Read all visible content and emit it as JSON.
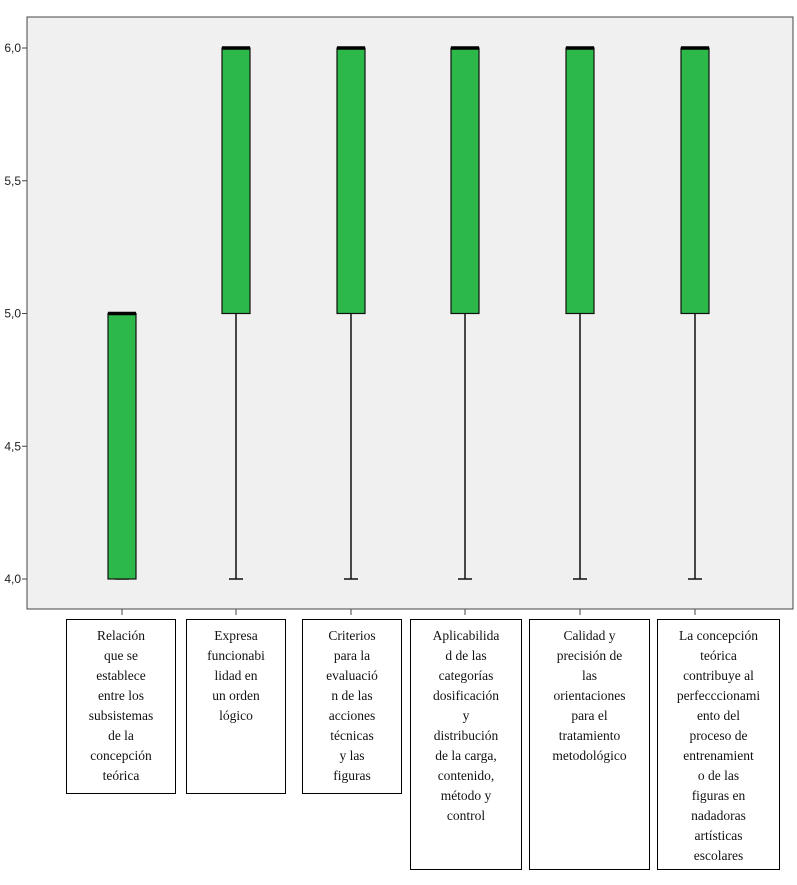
{
  "chart_data": {
    "type": "boxplot",
    "title": "",
    "xlabel": "",
    "ylabel": "",
    "ylim": [
      3.9,
      6.12
    ],
    "y_ticks": [
      4.0,
      4.5,
      5.0,
      5.5,
      6.0
    ],
    "y_tick_labels": [
      "4,0",
      "4,5",
      "5,0",
      "5,5",
      "6,0"
    ],
    "box_color": "#2db84a",
    "categories": [
      "Relación\nque se\nestablece\nentre los\nsubsistemas\nde la\nconcepción\nteórica",
      "Expresa\nfuncionabi\nlidad en\nun orden\nlógico",
      "Criterios\npara la\nevaluació\nn de las\nacciones\ntécnicas\ny las\nfiguras",
      "Aplicabilida\nd de las\ncategorías\ndosificación\ny\ndistribución\nde la carga,\ncontenido,\nmétodo y\ncontrol",
      "Calidad y\nprecisión de\nlas\norientaciones\npara el\ntratamiento\nmetodológico",
      "La concepción\nteórica\ncontribuye al\nperfecccionami\nento del\nproceso de\nentrenamient\no de las\nfiguras en\nnadadoras\nartísticas\nescolares"
    ],
    "boxes": [
      {
        "min": 4.0,
        "q1": 4.0,
        "median": 5.0,
        "q3": 5.0,
        "max": 5.0
      },
      {
        "min": 4.0,
        "q1": 5.0,
        "median": 6.0,
        "q3": 6.0,
        "max": 6.0
      },
      {
        "min": 4.0,
        "q1": 5.0,
        "median": 6.0,
        "q3": 6.0,
        "max": 6.0
      },
      {
        "min": 4.0,
        "q1": 5.0,
        "median": 6.0,
        "q3": 6.0,
        "max": 6.0
      },
      {
        "min": 4.0,
        "q1": 5.0,
        "median": 6.0,
        "q3": 6.0,
        "max": 6.0
      },
      {
        "min": 4.0,
        "q1": 5.0,
        "median": 6.0,
        "q3": 6.0,
        "max": 6.0
      }
    ]
  }
}
